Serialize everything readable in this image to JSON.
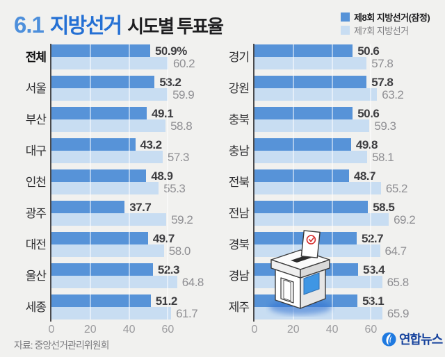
{
  "header": {
    "title_prefix": "6.1",
    "title_main": "지방선거",
    "title_sub": "시도별 투표율",
    "title_prefix_color": "#4d8fdb",
    "title_main_color": "#2470d4"
  },
  "footer": {
    "source": "자료: 중앙선거관리위원회",
    "logo_text": "연합뉴스"
  },
  "chart_data": {
    "type": "bar",
    "orientation": "horizontal",
    "title": "6.1 지방선거 시도별 투표율",
    "unit": "%",
    "xlim": [
      0,
      70
    ],
    "ticks": [
      0,
      20,
      40,
      60
    ],
    "grid": true,
    "legend_position": "top-right",
    "series": [
      {
        "name": "제8회 지방선거(잠정)",
        "color": "#5793d8"
      },
      {
        "name": "제7회 지방선거",
        "color": "#c8ddf2"
      }
    ],
    "groups": [
      {
        "rows": [
          {
            "label": "전체",
            "bold": true,
            "values": [
              50.9,
              60.2
            ],
            "display": [
              "50.9%",
              "60.2"
            ]
          },
          {
            "label": "서울",
            "values": [
              53.2,
              59.9
            ],
            "display": [
              "53.2",
              "59.9"
            ]
          },
          {
            "label": "부산",
            "values": [
              49.1,
              58.8
            ],
            "display": [
              "49.1",
              "58.8"
            ]
          },
          {
            "label": "대구",
            "values": [
              43.2,
              57.3
            ],
            "display": [
              "43.2",
              "57.3"
            ]
          },
          {
            "label": "인천",
            "values": [
              48.9,
              55.3
            ],
            "display": [
              "48.9",
              "55.3"
            ]
          },
          {
            "label": "광주",
            "values": [
              37.7,
              59.2
            ],
            "display": [
              "37.7",
              "59.2"
            ]
          },
          {
            "label": "대전",
            "values": [
              49.7,
              58.0
            ],
            "display": [
              "49.7",
              "58.0"
            ]
          },
          {
            "label": "울산",
            "values": [
              52.3,
              64.8
            ],
            "display": [
              "52.3",
              "64.8"
            ]
          },
          {
            "label": "세종",
            "values": [
              51.2,
              61.7
            ],
            "display": [
              "51.2",
              "61.7"
            ]
          }
        ]
      },
      {
        "rows": [
          {
            "label": "경기",
            "values": [
              50.6,
              57.8
            ],
            "display": [
              "50.6",
              "57.8"
            ]
          },
          {
            "label": "강원",
            "values": [
              57.8,
              63.2
            ],
            "display": [
              "57.8",
              "63.2"
            ]
          },
          {
            "label": "충북",
            "values": [
              50.6,
              59.3
            ],
            "display": [
              "50.6",
              "59.3"
            ]
          },
          {
            "label": "충남",
            "values": [
              49.8,
              58.1
            ],
            "display": [
              "49.8",
              "58.1"
            ]
          },
          {
            "label": "전북",
            "values": [
              48.7,
              65.2
            ],
            "display": [
              "48.7",
              "65.2"
            ]
          },
          {
            "label": "전남",
            "values": [
              58.5,
              69.2
            ],
            "display": [
              "58.5",
              "69.2"
            ]
          },
          {
            "label": "경북",
            "values": [
              52.7,
              64.7
            ],
            "display": [
              "52.7",
              "64.7"
            ]
          },
          {
            "label": "경남",
            "values": [
              53.4,
              65.8
            ],
            "display": [
              "53.4",
              "65.8"
            ]
          },
          {
            "label": "제주",
            "values": [
              53.1,
              65.9
            ],
            "display": [
              "53.1",
              "65.9"
            ]
          }
        ]
      }
    ]
  }
}
